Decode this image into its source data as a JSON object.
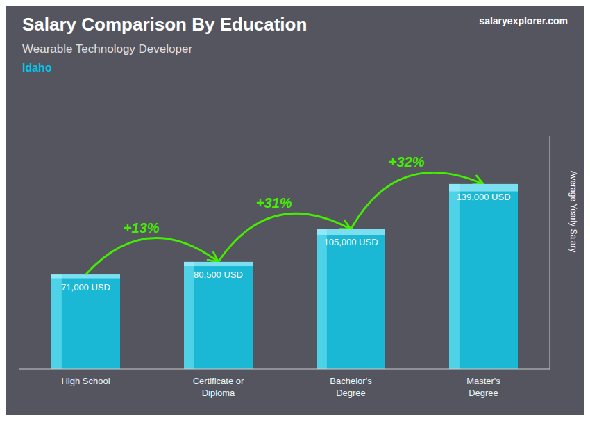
{
  "chart_data": {
    "type": "bar",
    "title": "Salary Comparison By Education",
    "subtitle": "Wearable Technology Developer",
    "ylabel": "Average Yearly Salary",
    "categories": [
      "High School",
      "Certificate or\nDiploma",
      "Bachelor's\nDegree",
      "Master's\nDegree"
    ],
    "values": [
      71000,
      80500,
      105000,
      139000
    ],
    "value_labels": [
      "71,000 USD",
      "80,500 USD",
      "105,000 USD",
      "139,000 USD"
    ],
    "color": "#1ab8d4",
    "ylim": [
      0,
      175000
    ],
    "tick_labels": "x",
    "data_labels": true,
    "grid": false,
    "annotations": [
      {
        "text": "+13%",
        "color": "#44ee00"
      },
      {
        "text": "+31%",
        "color": "#44ee00"
      },
      {
        "text": "+32%",
        "color": "#44ee00"
      },
      {
        "text": "Idaho",
        "color": "#00c8e8"
      },
      {
        "text": "salaryexplorer.com",
        "color": "#ffffff"
      }
    ]
  }
}
